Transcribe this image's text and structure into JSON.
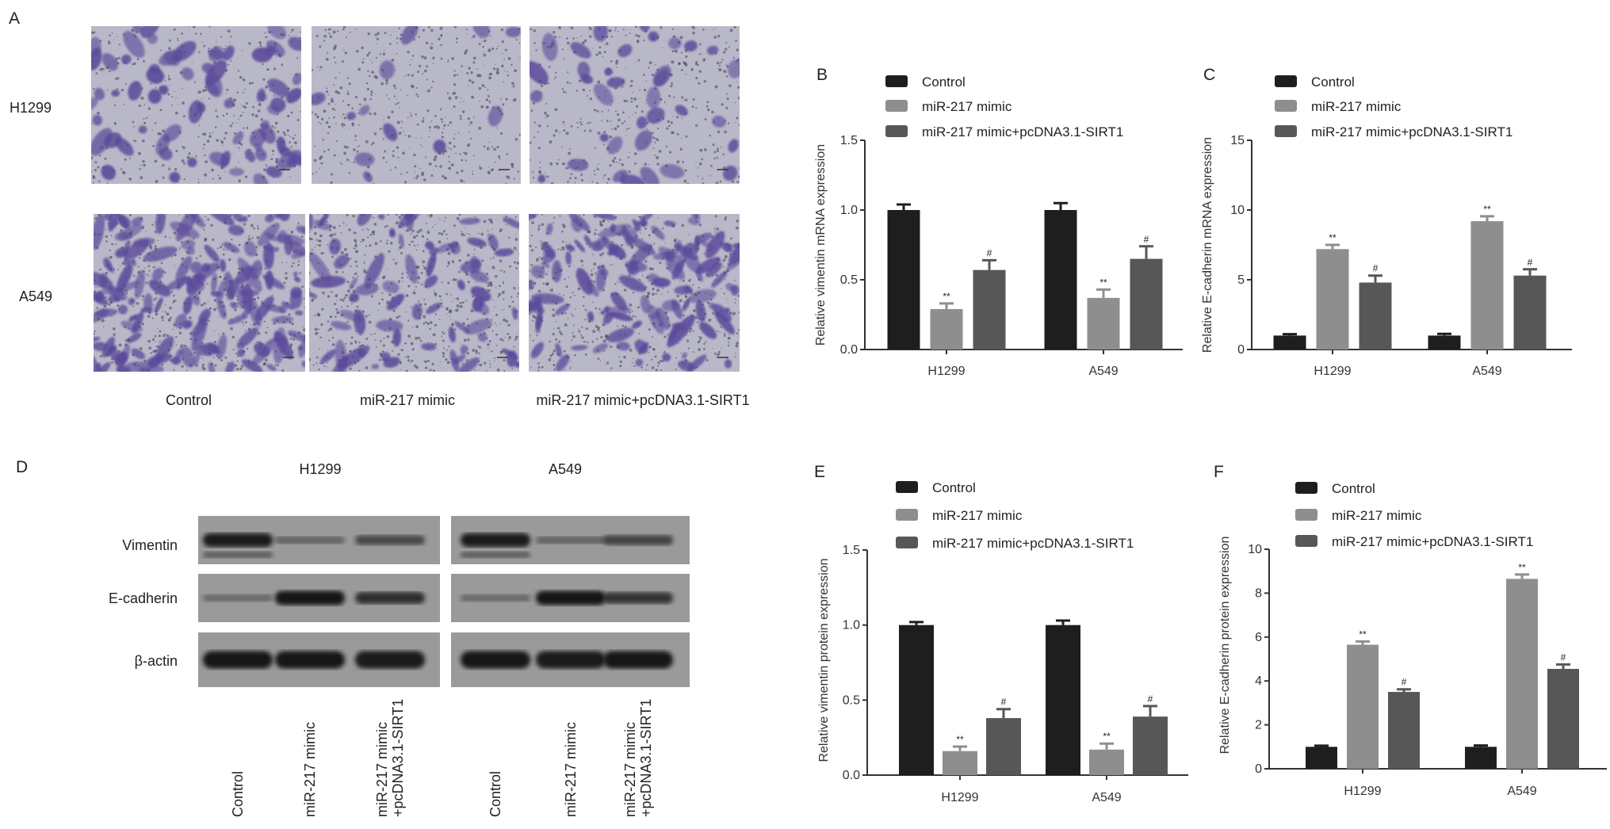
{
  "panel_labels": {
    "a": "A",
    "b": "B",
    "c": "C",
    "d": "D",
    "e": "E",
    "f": "F"
  },
  "panel_a": {
    "row_labels": [
      "H1299",
      "A549"
    ],
    "column_labels": [
      "Control",
      "miR-217 mimic",
      "miR-217 mimic+pcDNA3.1-SIRT1"
    ],
    "stain_color": "#5a4a9a",
    "background_color": "#b9b8c8"
  },
  "panel_d": {
    "cell_lines": [
      "H1299",
      "A549"
    ],
    "row_labels": [
      "Vimentin",
      "E-cadherin",
      "β-actin"
    ],
    "lane_labels": [
      "Control",
      "miR-217 mimic",
      "miR-217 mimic\n+pcDNA3.1-SIRT1"
    ],
    "lane_label_lines": [
      [
        "Control"
      ],
      [
        "miR-217 mimic"
      ],
      [
        "miR-217 mimic",
        "+pcDNA3.1-SIRT1"
      ]
    ],
    "band_intensity": {
      "H1299": {
        "Vimentin": [
          0.95,
          0.25,
          0.5
        ],
        "E-cadherin": [
          0.2,
          1.0,
          0.75
        ],
        "β-actin": [
          1.0,
          1.0,
          0.95
        ]
      },
      "A549": {
        "Vimentin": [
          0.95,
          0.25,
          0.55
        ],
        "E-cadherin": [
          0.2,
          1.0,
          0.7
        ],
        "β-actin": [
          1.0,
          0.95,
          1.0
        ]
      }
    }
  },
  "legend": [
    "Control",
    "miR-217 mimic",
    "miR-217 mimic+pcDNA3.1-SIRT1"
  ],
  "series_colors": [
    "#1e1e1e",
    "#8e8e8e",
    "#575757"
  ],
  "chart_data": [
    {
      "id": "B",
      "type": "bar",
      "ylabel": "Relative vimentin mRNA expression",
      "categories": [
        "H1299",
        "A549"
      ],
      "ylim": [
        0,
        1.5
      ],
      "yticks": [
        "0.0",
        "0.5",
        "1.0",
        "1.5"
      ],
      "ytick_values": [
        0,
        0.5,
        1.0,
        1.5
      ],
      "legend": "top-left",
      "series": [
        {
          "name": "Control",
          "values": [
            1.0,
            1.0
          ],
          "errors": [
            0.04,
            0.05
          ]
        },
        {
          "name": "miR-217 mimic",
          "values": [
            0.29,
            0.37
          ],
          "errors": [
            0.04,
            0.06
          ],
          "annotations": [
            "**",
            "**"
          ]
        },
        {
          "name": "miR-217 mimic+pcDNA3.1-SIRT1",
          "values": [
            0.57,
            0.65
          ],
          "errors": [
            0.07,
            0.09
          ],
          "annotations": [
            "#",
            "#"
          ]
        }
      ]
    },
    {
      "id": "C",
      "type": "bar",
      "ylabel": "Relative E-cadherin mRNA expression",
      "categories": [
        "H1299",
        "A549"
      ],
      "ylim": [
        0,
        15
      ],
      "yticks": [
        "0",
        "5",
        "10",
        "15"
      ],
      "ytick_values": [
        0,
        5,
        10,
        15
      ],
      "legend": "top-left",
      "series": [
        {
          "name": "Control",
          "values": [
            1.0,
            1.0
          ],
          "errors": [
            0.1,
            0.12
          ]
        },
        {
          "name": "miR-217 mimic",
          "values": [
            7.2,
            9.2
          ],
          "errors": [
            0.3,
            0.35
          ],
          "annotations": [
            "**",
            "**"
          ]
        },
        {
          "name": "miR-217 mimic+pcDNA3.1-SIRT1",
          "values": [
            4.8,
            5.3
          ],
          "errors": [
            0.5,
            0.45
          ],
          "annotations": [
            "#",
            "#"
          ]
        }
      ]
    },
    {
      "id": "E",
      "type": "bar",
      "ylabel": "Relative vimentin protein expression",
      "categories": [
        "H1299",
        "A549"
      ],
      "ylim": [
        0,
        1.5
      ],
      "yticks": [
        "0.0",
        "0.5",
        "1.0",
        "1.5"
      ],
      "ytick_values": [
        0,
        0.5,
        1.0,
        1.5
      ],
      "legend": "top-left",
      "series": [
        {
          "name": "Control",
          "values": [
            1.0,
            1.0
          ],
          "errors": [
            0.02,
            0.03
          ]
        },
        {
          "name": "miR-217 mimic",
          "values": [
            0.16,
            0.17
          ],
          "errors": [
            0.03,
            0.04
          ],
          "annotations": [
            "**",
            "**"
          ]
        },
        {
          "name": "miR-217 mimic+pcDNA3.1-SIRT1",
          "values": [
            0.38,
            0.39
          ],
          "errors": [
            0.06,
            0.07
          ],
          "annotations": [
            "#",
            "#"
          ]
        }
      ]
    },
    {
      "id": "F",
      "type": "bar",
      "ylabel": "Relative E-cadherin protein expression",
      "categories": [
        "H1299",
        "A549"
      ],
      "ylim": [
        0,
        10
      ],
      "yticks": [
        "0",
        "2",
        "4",
        "6",
        "8",
        "10"
      ],
      "ytick_values": [
        0,
        2,
        4,
        6,
        8,
        10
      ],
      "legend": "top-left",
      "series": [
        {
          "name": "Control",
          "values": [
            1.0,
            1.0
          ],
          "errors": [
            0.05,
            0.06
          ]
        },
        {
          "name": "miR-217 mimic",
          "values": [
            5.65,
            8.65
          ],
          "errors": [
            0.15,
            0.2
          ],
          "annotations": [
            "**",
            "**"
          ]
        },
        {
          "name": "miR-217 mimic+pcDNA3.1-SIRT1",
          "values": [
            3.5,
            4.55
          ],
          "errors": [
            0.12,
            0.2
          ],
          "annotations": [
            "#",
            "#"
          ]
        }
      ]
    }
  ]
}
